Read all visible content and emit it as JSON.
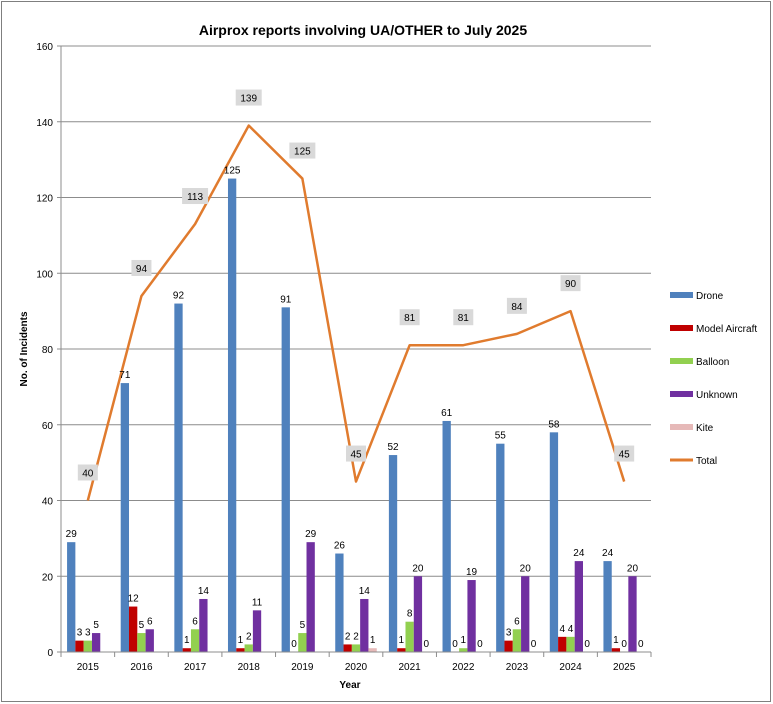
{
  "chart_data": {
    "type": "bar",
    "title": "Airprox reports involving UA/OTHER to July 2025",
    "xlabel": "Year",
    "ylabel": "No. of Incidents",
    "ylim": [
      0,
      160
    ],
    "yticks": [
      0,
      20,
      40,
      60,
      80,
      100,
      120,
      140,
      160
    ],
    "grid": true,
    "legend_position": "right",
    "categories": [
      "2015",
      "2016",
      "2017",
      "2018",
      "2019",
      "2020",
      "2021",
      "2022",
      "2023",
      "2024",
      "2025"
    ],
    "series": [
      {
        "name": "Drone",
        "kind": "bar",
        "color": "#4f81bd",
        "values": [
          29,
          71,
          92,
          125,
          91,
          26,
          52,
          61,
          55,
          58,
          24
        ]
      },
      {
        "name": "Model Aircraft",
        "kind": "bar",
        "color": "#c00000",
        "values": [
          3,
          12,
          1,
          1,
          0,
          2,
          1,
          0,
          3,
          4,
          1
        ]
      },
      {
        "name": "Balloon",
        "kind": "bar",
        "color": "#92d050",
        "values": [
          3,
          5,
          6,
          2,
          5,
          2,
          8,
          1,
          6,
          4,
          0
        ]
      },
      {
        "name": "Unknown",
        "kind": "bar",
        "color": "#7030a0",
        "values": [
          5,
          6,
          14,
          11,
          29,
          14,
          20,
          19,
          20,
          24,
          20
        ]
      },
      {
        "name": "Kite",
        "kind": "bar",
        "color": "#e6b9b8",
        "values": [
          null,
          null,
          null,
          null,
          null,
          1,
          0,
          0,
          0,
          0,
          0
        ]
      },
      {
        "name": "Total",
        "kind": "line",
        "color": "#e07b2e",
        "values": [
          40,
          94,
          113,
          139,
          125,
          45,
          81,
          81,
          84,
          90,
          45
        ]
      }
    ]
  }
}
